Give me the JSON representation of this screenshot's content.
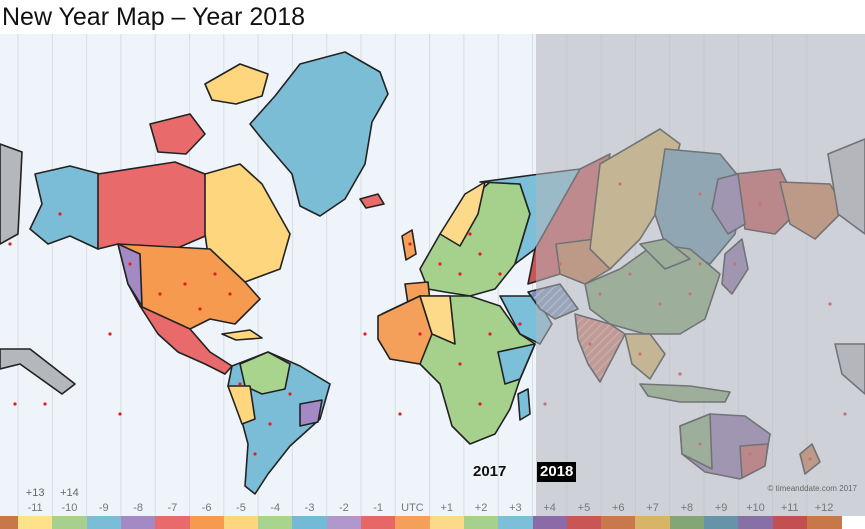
{
  "title": "New Year Map – Year 2018",
  "year_labels": {
    "previous": "2017",
    "next": "2018"
  },
  "credit": "© timeanddate.com 2017",
  "shade_color": "#b4b7bb",
  "ocean_color": "#eef4fa",
  "timezones": [
    {
      "label": "-11",
      "extra": "+13",
      "color": "#fde28a",
      "shaded": false
    },
    {
      "label": "-10",
      "extra": "+14",
      "color": "#a8d08d",
      "shaded": false
    },
    {
      "label": "-9",
      "extra": "",
      "color": "#7bbdd6",
      "shaded": false
    },
    {
      "label": "-8",
      "extra": "",
      "color": "#a48ac4",
      "shaded": false
    },
    {
      "label": "-7",
      "extra": "",
      "color": "#e86a6a",
      "shaded": false
    },
    {
      "label": "-6",
      "extra": "",
      "color": "#f59a4f",
      "shaded": false
    },
    {
      "label": "-5",
      "extra": "",
      "color": "#fdd67d",
      "shaded": false
    },
    {
      "label": "-4",
      "extra": "",
      "color": "#a9d48e",
      "shaded": false
    },
    {
      "label": "-3",
      "extra": "",
      "color": "#73bad6",
      "shaded": false
    },
    {
      "label": "-2",
      "extra": "",
      "color": "#b097cc",
      "shaded": false
    },
    {
      "label": "-1",
      "extra": "",
      "color": "#e76666",
      "shaded": false
    },
    {
      "label": "UTC",
      "extra": "",
      "color": "#f4a05b",
      "shaded": false
    },
    {
      "label": "+1",
      "extra": "",
      "color": "#fdd98a",
      "shaded": false
    },
    {
      "label": "+2",
      "extra": "",
      "color": "#a6d18d",
      "shaded": false
    },
    {
      "label": "+3",
      "extra": "",
      "color": "#7cbfd8",
      "shaded": false
    },
    {
      "label": "+4",
      "extra": "",
      "color": "#8b6aa8",
      "shaded": true
    },
    {
      "label": "+5",
      "extra": "",
      "color": "#c95555",
      "shaded": true
    },
    {
      "label": "+6",
      "extra": "",
      "color": "#c8784a",
      "shaded": true
    },
    {
      "label": "+7",
      "extra": "",
      "color": "#d8b566",
      "shaded": true
    },
    {
      "label": "+8",
      "extra": "",
      "color": "#82a774",
      "shaded": true
    },
    {
      "label": "+9",
      "extra": "",
      "color": "#6793a8",
      "shaded": true
    },
    {
      "label": "+10",
      "extra": "",
      "color": "#8770a6",
      "shaded": true
    },
    {
      "label": "+11",
      "extra": "",
      "color": "#c25050",
      "shaded": true
    },
    {
      "label": "+12",
      "extra": "",
      "color": "#c87848",
      "shaded": true
    }
  ]
}
